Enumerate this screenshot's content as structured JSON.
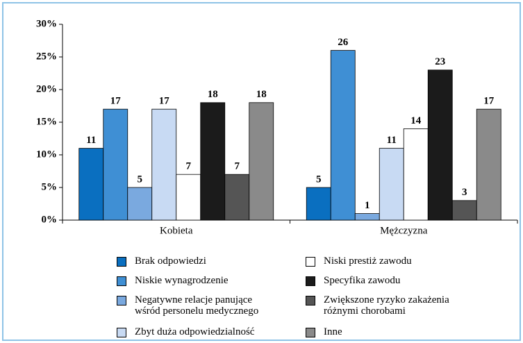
{
  "chart_data": {
    "type": "bar",
    "categories": [
      "Kobieta",
      "Mężczyzna"
    ],
    "series": [
      {
        "name": "Brak odpowiedzi",
        "color": "#0a6fc0",
        "values": [
          11,
          5
        ]
      },
      {
        "name": "Niskie wynagrodzenie",
        "color": "#3f8fd4",
        "values": [
          17,
          26
        ]
      },
      {
        "name": "Negatywne relacje panujące\nwśród personelu medycznego",
        "color": "#7aa9df",
        "values": [
          5,
          1
        ]
      },
      {
        "name": "Zbyt duża odpowiedzialność",
        "color": "#c8daf3",
        "values": [
          17,
          11
        ]
      },
      {
        "name": "Niski prestiż zawodu",
        "color": "#ffffff",
        "values": [
          7,
          14
        ]
      },
      {
        "name": "Specyfika zawodu",
        "color": "#1b1b1b",
        "values": [
          18,
          23
        ]
      },
      {
        "name": "Zwiększone ryzyko zakażenia\nróżnymi chorobami",
        "color": "#555555",
        "values": [
          7,
          3
        ]
      },
      {
        "name": "Inne",
        "color": "#8a8a8a",
        "values": [
          18,
          17
        ]
      }
    ],
    "ylim": [
      0,
      30
    ],
    "yticks": [
      {
        "value": 0,
        "label": "0%"
      },
      {
        "value": 5,
        "label": "5%"
      },
      {
        "value": 10,
        "label": "10%"
      },
      {
        "value": 15,
        "label": "15%"
      },
      {
        "value": 20,
        "label": "20%"
      },
      {
        "value": 25,
        "label": "25%"
      },
      {
        "value": 30,
        "label": "30%"
      }
    ],
    "grid": false
  }
}
